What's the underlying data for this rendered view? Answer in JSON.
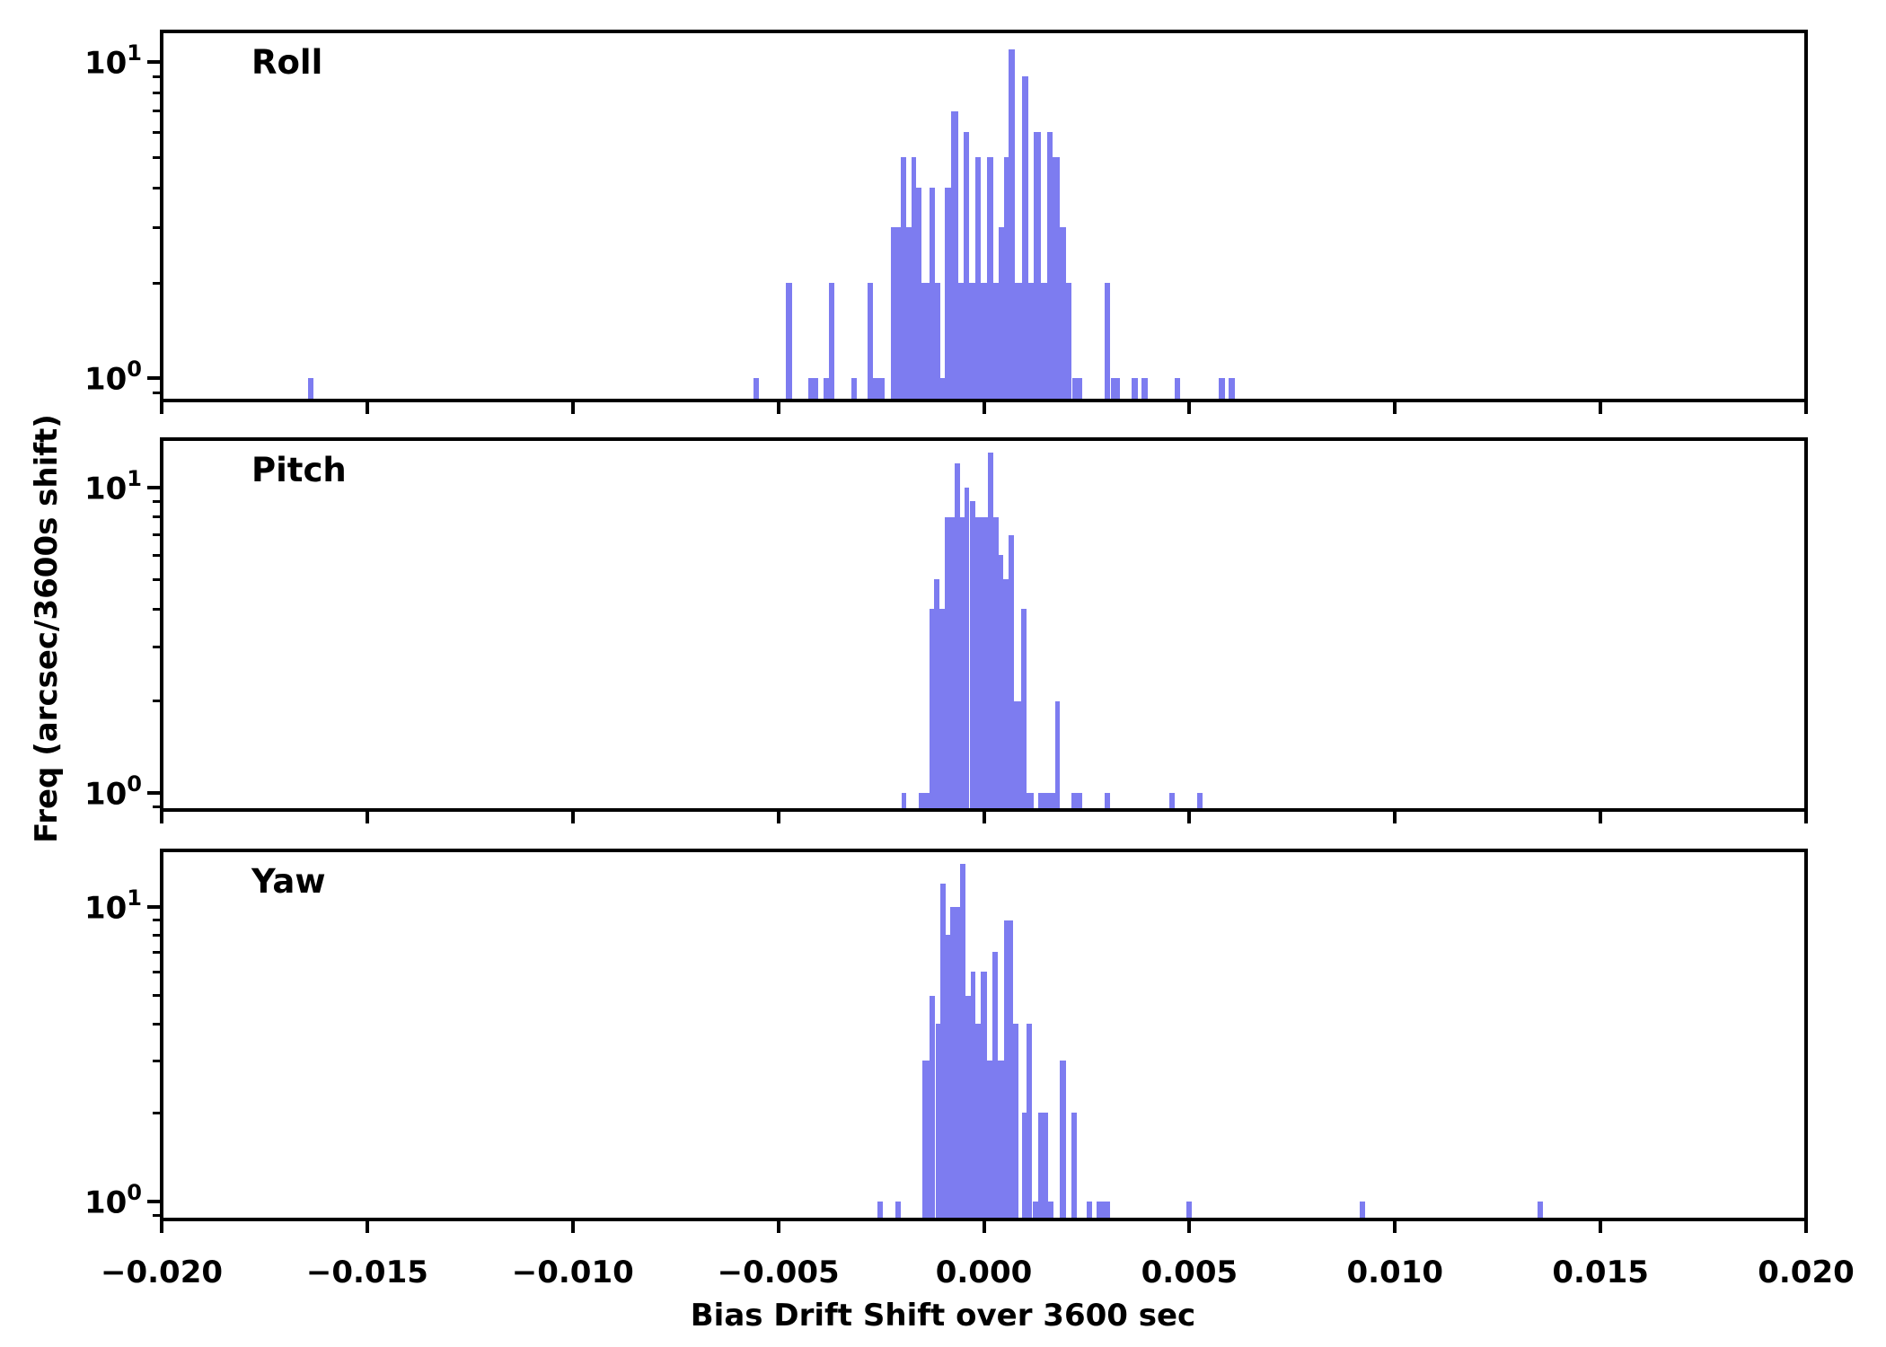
{
  "figure": {
    "background": "#ffffff",
    "text_color": "#000000"
  },
  "chart_data": {
    "type": "bar",
    "subtype": "histogram-log-y",
    "xlabel": "Bias Drift Shift over 3600 sec",
    "ylabel": "Freq (arcsec/3600s shift)",
    "bar_color": "#7d7cf0",
    "axis_color": "#000000",
    "x_axis": {
      "min": -0.02,
      "max": 0.02,
      "major_ticks": [
        -0.02,
        -0.015,
        -0.01,
        -0.005,
        0.0,
        0.005,
        0.01,
        0.015,
        0.02
      ],
      "tick_labels": [
        "−0.020",
        "−0.015",
        "−0.010",
        "−0.005",
        "0.000",
        "0.005",
        "0.010",
        "0.015",
        "0.020"
      ]
    },
    "y_axis": {
      "scale": "log",
      "major_ticks": [
        1,
        10
      ],
      "major_tick_labels": [
        {
          "mantissa": "10",
          "exponent": "0"
        },
        {
          "mantissa": "10",
          "exponent": "1"
        }
      ],
      "minor_ticks": [
        0.9,
        2,
        3,
        4,
        5,
        6,
        7,
        8,
        9
      ]
    },
    "panels": [
      {
        "title": "Roll",
        "ylim": [
          0.85,
          12.5
        ],
        "peak_count": 11,
        "bars": [
          [
            -0.01645,
            -0.01632,
            1
          ],
          [
            -0.00561,
            -0.00548,
            1
          ],
          [
            -0.00481,
            -0.00467,
            2
          ],
          [
            -0.00428,
            -0.00402,
            1
          ],
          [
            -0.00389,
            -0.00376,
            1
          ],
          [
            -0.00376,
            -0.00363,
            2
          ],
          [
            -0.00323,
            -0.00308,
            1
          ],
          [
            -0.00282,
            -0.00269,
            2
          ],
          [
            -0.00269,
            -0.00242,
            1
          ],
          [
            -0.00227,
            -0.00203,
            3
          ],
          [
            -0.00203,
            -0.00188,
            5
          ],
          [
            -0.00188,
            -0.00175,
            3
          ],
          [
            -0.00175,
            -0.00164,
            5
          ],
          [
            -0.00164,
            -0.00151,
            4
          ],
          [
            -0.00151,
            -0.00133,
            2
          ],
          [
            -0.00133,
            -0.0012,
            4
          ],
          [
            -0.0012,
            -0.00107,
            2
          ],
          [
            -0.00107,
            -0.00096,
            1
          ],
          [
            -0.00096,
            -0.00079,
            4
          ],
          [
            -0.00079,
            -0.00063,
            7
          ],
          [
            -0.00063,
            -0.0005,
            2
          ],
          [
            -0.0005,
            -0.00037,
            6
          ],
          [
            -0.00037,
            -0.0002,
            2
          ],
          [
            -0.0002,
            -7e-05,
            5
          ],
          [
            -7e-05,
            7e-05,
            2
          ],
          [
            7e-05,
            0.00022,
            5
          ],
          [
            0.00022,
            0.00035,
            2
          ],
          [
            0.00035,
            0.00048,
            3
          ],
          [
            0.00048,
            0.00061,
            5
          ],
          [
            0.00061,
            0.00076,
            11
          ],
          [
            0.00076,
            0.00092,
            2
          ],
          [
            0.00092,
            0.00109,
            9
          ],
          [
            0.00109,
            0.00122,
            2
          ],
          [
            0.00122,
            0.00138,
            6
          ],
          [
            0.00138,
            0.00153,
            2
          ],
          [
            0.00153,
            0.00168,
            6
          ],
          [
            0.00168,
            0.00184,
            5
          ],
          [
            0.00184,
            0.00199,
            3
          ],
          [
            0.00199,
            0.00214,
            2
          ],
          [
            0.00214,
            0.00238,
            1
          ],
          [
            0.00293,
            0.00308,
            2
          ],
          [
            0.00308,
            0.0033,
            1
          ],
          [
            0.0036,
            0.00374,
            1
          ],
          [
            0.00384,
            0.00398,
            1
          ],
          [
            0.00465,
            0.00478,
            1
          ],
          [
            0.00572,
            0.00586,
            1
          ],
          [
            0.00596,
            0.0061,
            1
          ]
        ]
      },
      {
        "title": "Pitch",
        "ylim": [
          0.88,
          14.4
        ],
        "peak_count": 13,
        "bars": [
          [
            -0.00201,
            -0.0019,
            1
          ],
          [
            -0.00159,
            -0.00133,
            1
          ],
          [
            -0.00133,
            -0.00122,
            4
          ],
          [
            -0.00122,
            -0.00109,
            5
          ],
          [
            -0.00109,
            -0.00096,
            4
          ],
          [
            -0.00096,
            -0.00072,
            8
          ],
          [
            -0.00072,
            -0.00059,
            12
          ],
          [
            -0.00059,
            -0.00046,
            8
          ],
          [
            -0.00046,
            -0.00035,
            10
          ],
          [
            -0.00035,
            -0.00022,
            9
          ],
          [
            -0.00022,
            9e-05,
            8
          ],
          [
            9e-05,
            0.00022,
            13
          ],
          [
            0.00022,
            0.00035,
            8
          ],
          [
            0.00035,
            0.00046,
            6
          ],
          [
            0.00046,
            0.00059,
            5
          ],
          [
            0.00059,
            0.00074,
            7
          ],
          [
            0.00074,
            0.0009,
            2
          ],
          [
            0.0009,
            0.00103,
            4
          ],
          [
            0.00103,
            0.00122,
            1
          ],
          [
            0.00133,
            0.00173,
            1
          ],
          [
            0.00173,
            0.00184,
            2
          ],
          [
            0.00212,
            0.0024,
            1
          ],
          [
            0.00293,
            0.00306,
            1
          ],
          [
            0.0045,
            0.00463,
            1
          ],
          [
            0.00518,
            0.00531,
            1
          ]
        ]
      },
      {
        "title": "Yaw",
        "ylim": [
          0.87,
          15.5
        ],
        "peak_count": 14,
        "bars": [
          [
            -0.00258,
            -0.00245,
            1
          ],
          [
            -0.00216,
            -0.00203,
            1
          ],
          [
            -0.00149,
            -0.00133,
            3
          ],
          [
            -0.00133,
            -0.00118,
            5
          ],
          [
            -0.00118,
            -0.00107,
            4
          ],
          [
            -0.00107,
            -0.00094,
            12
          ],
          [
            -0.00094,
            -0.00083,
            8
          ],
          [
            -0.00083,
            -0.00057,
            10
          ],
          [
            -0.00057,
            -0.00044,
            14
          ],
          [
            -0.00044,
            -0.00031,
            5
          ],
          [
            -0.00031,
            -0.0002,
            6
          ],
          [
            -0.0002,
            -7e-05,
            4
          ],
          [
            -7e-05,
            7e-05,
            6
          ],
          [
            7e-05,
            0.0002,
            3
          ],
          [
            0.0002,
            0.00033,
            7
          ],
          [
            0.00033,
            0.0005,
            3
          ],
          [
            0.0005,
            0.0007,
            9
          ],
          [
            0.0007,
            0.00085,
            4
          ],
          [
            0.00092,
            0.00103,
            2
          ],
          [
            0.00103,
            0.00118,
            4
          ],
          [
            0.00118,
            0.00133,
            1
          ],
          [
            0.00133,
            0.00157,
            2
          ],
          [
            0.00157,
            0.0017,
            1
          ],
          [
            0.00184,
            0.00199,
            3
          ],
          [
            0.00212,
            0.00227,
            2
          ],
          [
            0.00251,
            0.00264,
            1
          ],
          [
            0.00275,
            0.00306,
            1
          ],
          [
            0.00492,
            0.00505,
            1
          ],
          [
            0.00915,
            0.00928,
            1
          ],
          [
            0.01346,
            0.01359,
            1
          ]
        ]
      }
    ]
  }
}
